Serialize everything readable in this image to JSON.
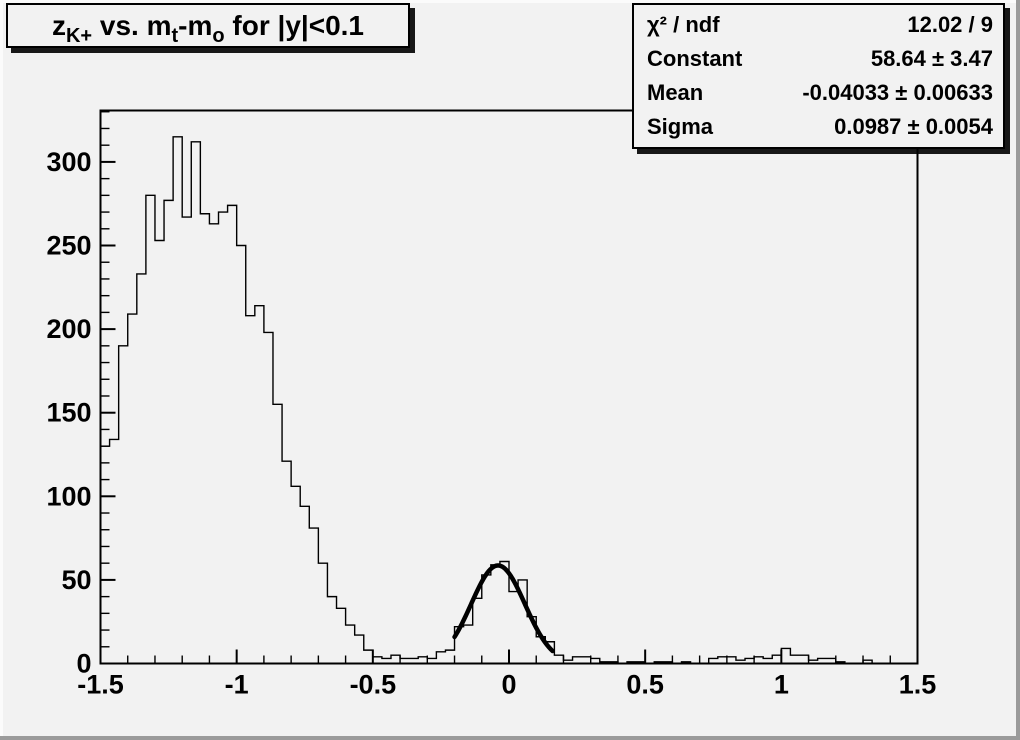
{
  "canvas": {
    "bg_color": "#f2f2f2",
    "line_color": "#000000"
  },
  "title": {
    "full_text": "z_{K+} vs. m_{t}-m_{o} for |y|<0.1",
    "parts": [
      {
        "t": "z",
        "sub": "K+"
      },
      {
        "t": " vs. m",
        "sub": "t"
      },
      {
        "t": "-m",
        "sub": "o"
      },
      {
        "t": " for |y|<0.1",
        "sub": ""
      }
    ]
  },
  "stats": {
    "rows": [
      {
        "label": "χ² / ndf",
        "value": "12.02 / 9"
      },
      {
        "label": "Constant",
        "value": "58.64 ± 3.47"
      },
      {
        "label": "Mean",
        "value": "-0.04033 ± 0.00633"
      },
      {
        "label": "Sigma",
        "value": "0.0987 ± 0.0054"
      }
    ]
  },
  "chart_data": {
    "type": "bar",
    "subtype": "root-histogram-step",
    "title": "z_{K+} vs. m_{t}-m_{o} for |y|<0.1",
    "xlabel": "",
    "ylabel": "",
    "xlim": [
      -1.5,
      1.5
    ],
    "ylim": [
      0,
      330.75
    ],
    "grid": false,
    "legend": "none",
    "x_major_ticks": [
      -1.5,
      -1,
      -0.5,
      0,
      0.5,
      1,
      1.5
    ],
    "x_tick_labels": [
      "-1.5",
      "-1",
      "-0.5",
      "0",
      "0.5",
      "1",
      "1.5"
    ],
    "x_minor_step": 0.1,
    "y_major_ticks": [
      0,
      50,
      100,
      150,
      200,
      250,
      300
    ],
    "y_minor_step": 10,
    "bin_start": -1.5,
    "bin_width": 0.0333333,
    "bins": [
      130,
      134,
      190,
      209,
      233,
      280,
      253,
      277,
      315,
      267,
      312,
      269,
      263,
      270,
      274,
      250,
      208,
      214,
      198,
      155,
      121,
      106,
      94,
      81,
      60,
      40,
      33,
      23,
      17,
      8,
      4,
      3,
      5,
      3,
      3,
      4,
      3,
      7,
      8,
      22,
      23,
      39,
      53,
      59,
      61,
      43,
      50,
      28,
      16,
      13,
      5,
      2,
      4,
      4,
      3,
      1,
      1,
      0,
      1,
      1,
      0,
      1,
      1,
      0,
      1,
      0,
      0,
      3,
      4,
      4,
      2,
      3,
      4,
      3,
      5,
      9,
      5,
      5,
      2,
      3,
      3,
      1,
      0,
      0,
      2,
      0,
      0,
      0,
      0,
      0
    ],
    "fit": {
      "shape": "gaussian",
      "chi2": 12.02,
      "ndf": 9,
      "constant": 58.64,
      "constant_err": 3.47,
      "mean": -0.04033,
      "mean_err": 0.00633,
      "sigma": 0.0987,
      "sigma_err": 0.0054,
      "draw_range": [
        -0.2,
        0.163
      ],
      "line_width": 4.5
    }
  }
}
